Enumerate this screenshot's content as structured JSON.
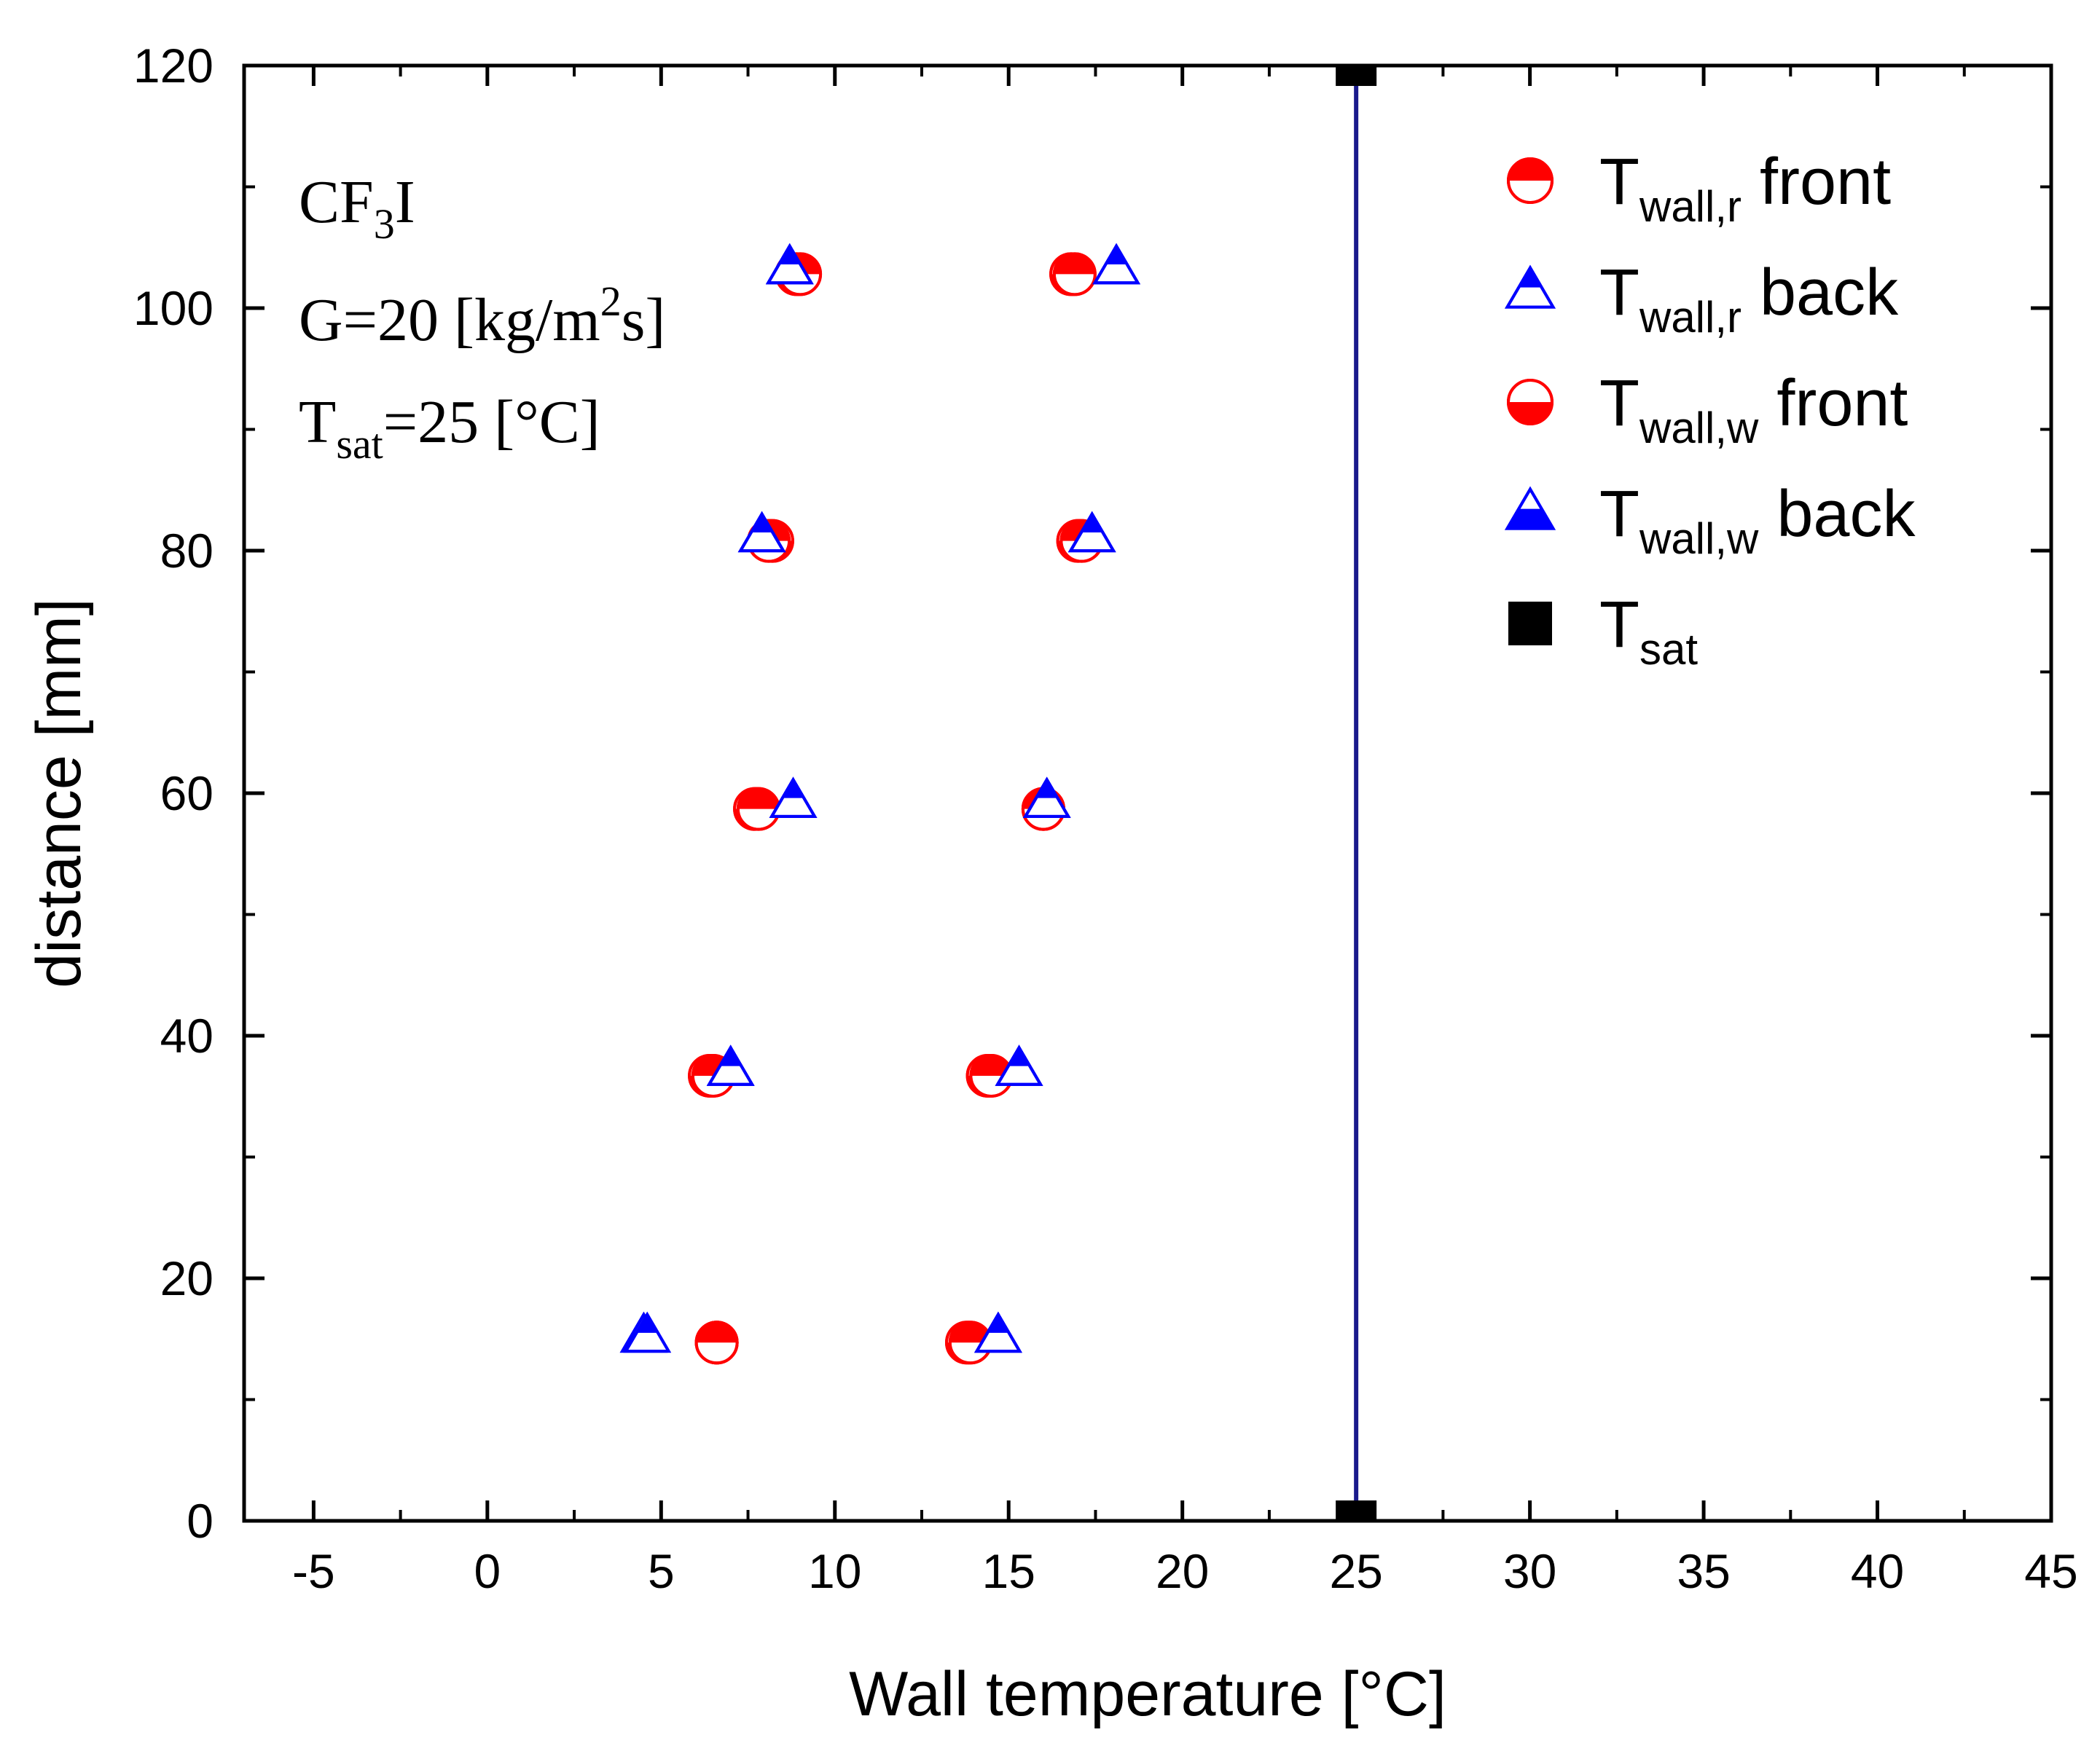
{
  "chart_data": {
    "type": "scatter",
    "xlabel": "Wall temperature [°C]",
    "ylabel": "distance [mm]",
    "xlim": [
      -7,
      45
    ],
    "ylim": [
      0,
      120
    ],
    "xticks": [
      -5,
      0,
      5,
      10,
      15,
      20,
      25,
      30,
      35,
      40,
      45
    ],
    "yticks": [
      0,
      20,
      40,
      60,
      80,
      100,
      120
    ],
    "grid": false,
    "legend_position": "top-right",
    "colors": {
      "red": "#ff0000",
      "blue": "#0000ff",
      "black": "#000000",
      "navy_line": "#1a1a8c"
    },
    "annotations": [
      {
        "id": "fluid",
        "parts": [
          {
            "t": "CF"
          },
          {
            "t": "3",
            "sub": true
          },
          {
            "t": "I"
          }
        ]
      },
      {
        "id": "mass-flux",
        "parts": [
          {
            "t": "G=20 [kg/m"
          },
          {
            "t": "2",
            "sup": true
          },
          {
            "t": "s]"
          }
        ]
      },
      {
        "id": "tsat",
        "parts": [
          {
            "t": "T"
          },
          {
            "t": "sat",
            "sub": true
          },
          {
            "t": "=25 [°C]"
          }
        ]
      }
    ],
    "series": [
      {
        "name_main": "T",
        "name_sub": "wall,r",
        "name_suffix": " front",
        "marker": "circle-top-half",
        "color": "#ff0000",
        "x": [
          6.6,
          6.5,
          7.8,
          8.1,
          9.0,
          13.9,
          14.5,
          16.0,
          17.1,
          16.9
        ],
        "y": [
          14.7,
          36.7,
          58.7,
          80.8,
          102.8,
          14.7,
          36.7,
          58.7,
          80.8,
          102.8
        ]
      },
      {
        "name_main": "T",
        "name_sub": "wall,r",
        "name_suffix": " back",
        "marker": "triangle-top-half",
        "color": "#0000ff",
        "x": [
          4.6,
          7.0,
          8.8,
          7.9,
          8.7,
          14.7,
          15.3,
          16.1,
          17.4,
          18.1
        ],
        "y": [
          15.2,
          37.2,
          59.3,
          81.2,
          103.3,
          15.2,
          37.2,
          59.3,
          81.2,
          103.3
        ]
      },
      {
        "name_main": "T",
        "name_sub": "wall,w",
        "name_suffix": " front",
        "marker": "circle-bottom-half",
        "color": "#ff0000",
        "x": [
          6.6,
          6.4,
          7.7,
          8.2,
          8.9,
          13.8,
          14.4,
          16.0,
          17.0,
          16.8
        ],
        "y": [
          14.7,
          36.7,
          58.7,
          80.8,
          102.8,
          14.7,
          36.7,
          58.7,
          80.8,
          102.8
        ]
      },
      {
        "name_main": "T",
        "name_sub": "wall,w",
        "name_suffix": " back",
        "marker": "triangle-bottom-half",
        "color": "#0000ff",
        "x": [
          4.5,
          7.0,
          8.8,
          7.9,
          8.7,
          14.7,
          15.3,
          16.1,
          17.4,
          18.1
        ],
        "y": [
          15.2,
          37.2,
          59.3,
          81.2,
          103.3,
          15.2,
          37.2,
          59.3,
          81.2,
          103.3
        ]
      },
      {
        "name_main": "T",
        "name_sub": "sat",
        "name_suffix": "",
        "marker": "square",
        "color": "#000000",
        "x": [
          25,
          25
        ],
        "y": [
          0,
          120
        ],
        "connect_line_color": "#1a1a8c"
      }
    ]
  }
}
